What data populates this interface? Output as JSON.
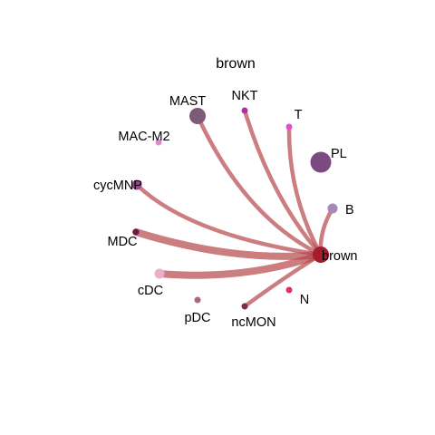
{
  "title": "brown",
  "edge_color": "#b5464a",
  "target": "brown",
  "nodes": [
    {
      "name": "MAST",
      "color": "#7d5a78",
      "size": "large"
    },
    {
      "name": "NKT",
      "color": "#b030a0",
      "size": "small"
    },
    {
      "name": "T",
      "color": "#e24fcc",
      "size": "small"
    },
    {
      "name": "PL",
      "color": "#7a4a80",
      "size": "xlarge"
    },
    {
      "name": "MAC-M2",
      "color": "#de8cc8",
      "size": "small"
    },
    {
      "name": "cycMNP",
      "color": "#9a4a8c",
      "size": "medium"
    },
    {
      "name": "B",
      "color": "#a888bc",
      "size": "medium"
    },
    {
      "name": "MDC",
      "color": "#6a1848",
      "size": "small"
    },
    {
      "name": "brown",
      "color": "#a51d2d",
      "size": "large"
    },
    {
      "name": "cDC",
      "color": "#e8b0c8",
      "size": "medium"
    },
    {
      "name": "N",
      "color": "#e0305c",
      "size": "small"
    },
    {
      "name": "pDC",
      "color": "#a86880",
      "size": "small"
    },
    {
      "name": "ncMON",
      "color": "#7a3040",
      "size": "small"
    }
  ],
  "edges": [
    {
      "from": "MAST",
      "to": "brown",
      "weight": "medium"
    },
    {
      "from": "NKT",
      "to": "brown",
      "weight": "medium"
    },
    {
      "from": "T",
      "to": "brown",
      "weight": "medium"
    },
    {
      "from": "cycMNP",
      "to": "brown",
      "weight": "medium"
    },
    {
      "from": "B",
      "to": "brown",
      "weight": "medium"
    },
    {
      "from": "MDC",
      "to": "brown",
      "weight": "thick"
    },
    {
      "from": "cDC",
      "to": "brown",
      "weight": "thick"
    },
    {
      "from": "ncMON",
      "to": "brown",
      "weight": "medium"
    }
  ]
}
